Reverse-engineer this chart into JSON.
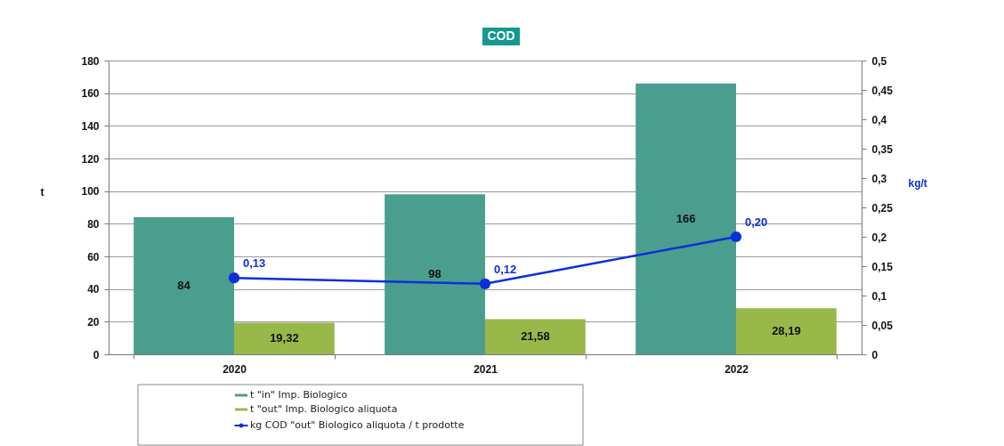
{
  "chart_data": {
    "type": "bar",
    "title": "COD",
    "ylabel": "t",
    "y2label": "kg/t",
    "categories": [
      "2020",
      "2021",
      "2022"
    ],
    "series": [
      {
        "name": "t \"in\" Imp. Biologico",
        "color": "#4a9e8e",
        "values": [
          84,
          98,
          166
        ],
        "value_labels": [
          "84",
          "98",
          "166"
        ]
      },
      {
        "name": "t \"out\" Imp. Biologico aliquota",
        "color": "#98b84a",
        "values": [
          19.32,
          21.58,
          28.19
        ],
        "value_labels": [
          "19,32",
          "21,58",
          "28,19"
        ]
      },
      {
        "name": "kg COD \"out\" Biologico aliquota / t prodotte",
        "type": "line",
        "axis": "y2",
        "color": "#0a30d8",
        "values": [
          0.13,
          0.12,
          0.2
        ],
        "value_labels": [
          "0,13",
          "0,12",
          "0,20"
        ]
      }
    ],
    "ylim": [
      0,
      180
    ],
    "yticks": [
      0,
      20,
      40,
      60,
      80,
      100,
      120,
      140,
      160,
      180
    ],
    "y2lim": [
      0,
      0.5
    ],
    "y2ticks": [
      0,
      {
        "value": 0.05,
        "label": "0,05"
      },
      {
        "value": 0.1,
        "label": "0,1"
      },
      {
        "value": 0.15,
        "label": "0,15"
      },
      {
        "value": 0.2,
        "label": "0,2"
      },
      {
        "value": 0.25,
        "label": "0,25"
      },
      {
        "value": 0.3,
        "label": "0,3"
      },
      {
        "value": 0.35,
        "label": "0,35"
      },
      {
        "value": 0.4,
        "label": "0,4"
      },
      {
        "value": 0.45,
        "label": "0,45"
      },
      {
        "value": 0.5,
        "label": "0,5"
      }
    ],
    "grid": "y",
    "legend": "bottom",
    "marker": "circle"
  }
}
